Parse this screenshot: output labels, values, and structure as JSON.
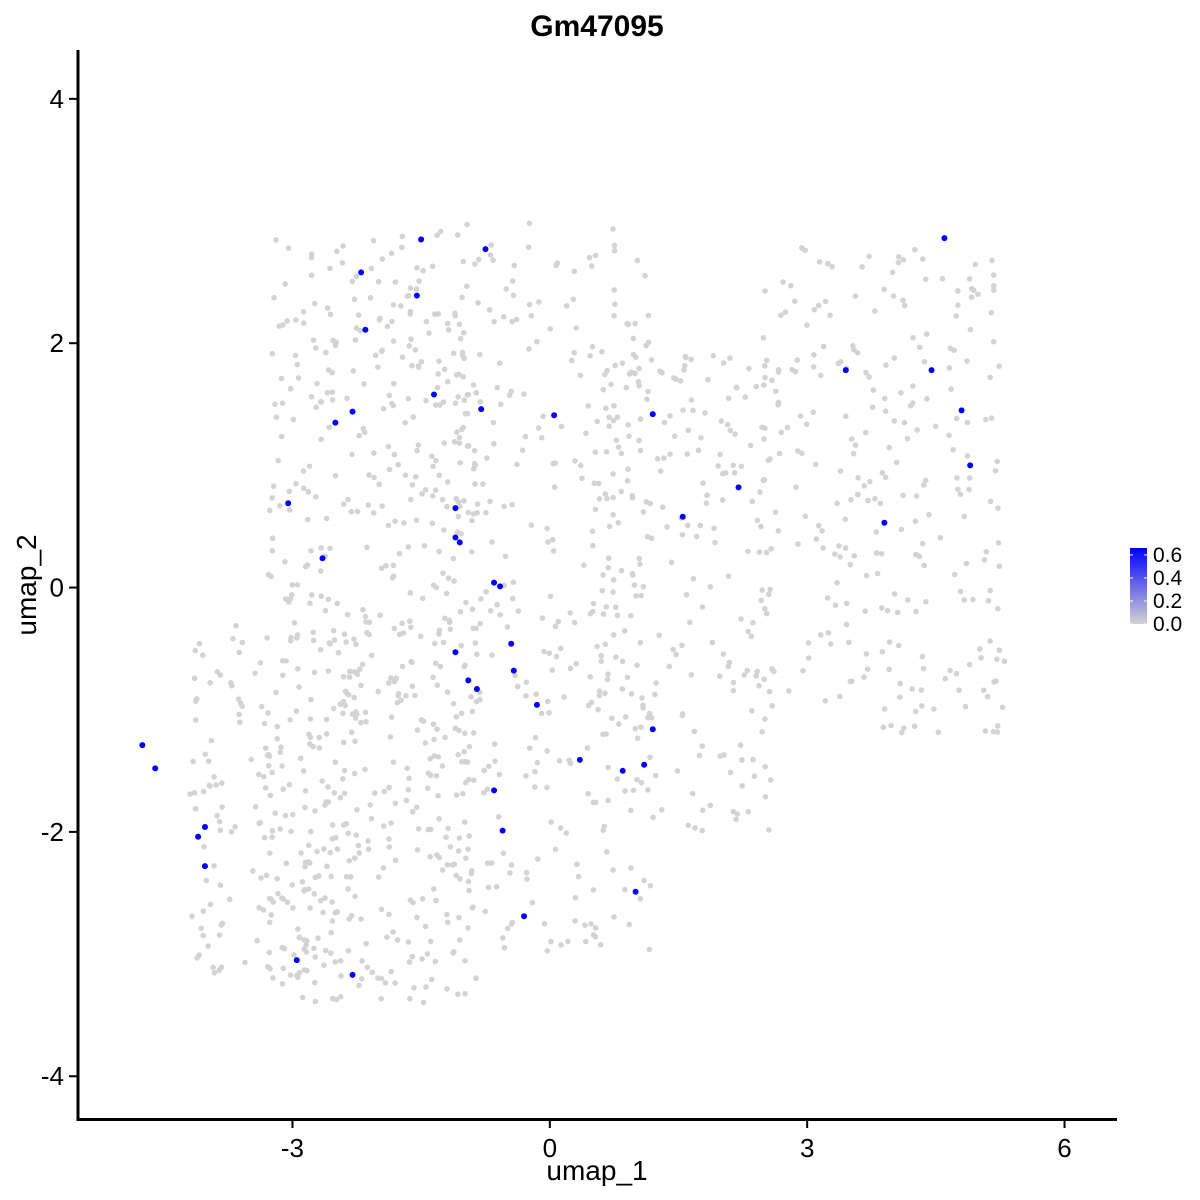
{
  "chart_data": {
    "type": "scatter",
    "title": "Gm47095",
    "xlabel": "umap_1",
    "ylabel": "umap_2",
    "xlim": [
      -5.5,
      6.6
    ],
    "ylim": [
      -4.35,
      4.4
    ],
    "x_ticks": [
      -3,
      0,
      3,
      6
    ],
    "x_tick_labels": [
      "-3",
      "0",
      "3",
      "6"
    ],
    "y_ticks": [
      -4,
      -2,
      0,
      2,
      4
    ],
    "y_tick_labels": [
      "-4",
      "-2",
      "0",
      "2",
      "4"
    ],
    "grid": false,
    "colors": {
      "low": "#d3d3d3",
      "high": "#0000ff"
    },
    "legend": {
      "position": "right",
      "ticks": [
        0.0,
        0.2,
        0.4,
        0.6
      ],
      "tick_labels": [
        "0.0",
        "0.2",
        "0.4",
        "0.6"
      ],
      "range": [
        0,
        0.66
      ]
    },
    "background_cells": {
      "expression": 0,
      "count": 1500,
      "regions": [
        {
          "x": [
            -3.3,
            -0.8
          ],
          "y": [
            -3.4,
            2.9
          ],
          "weight": 0.34
        },
        {
          "x": [
            -4.2,
            -2.2
          ],
          "y": [
            -3.2,
            -0.3
          ],
          "weight": 0.12
        },
        {
          "x": [
            -1.4,
            1.2
          ],
          "y": [
            -3.0,
            3.0
          ],
          "weight": 0.22
        },
        {
          "x": [
            0.5,
            2.6
          ],
          "y": [
            -2.0,
            1.9
          ],
          "weight": 0.14
        },
        {
          "x": [
            2.4,
            5.3
          ],
          "y": [
            -1.2,
            2.8
          ],
          "weight": 0.18
        }
      ]
    },
    "points": [
      {
        "x": -2.2,
        "y": 2.58,
        "value": 0.66
      },
      {
        "x": -1.5,
        "y": 2.85,
        "value": 0.66
      },
      {
        "x": -0.75,
        "y": 2.77,
        "value": 0.66
      },
      {
        "x": -1.55,
        "y": 2.39,
        "value": 0.66
      },
      {
        "x": -2.15,
        "y": 2.11,
        "value": 0.66
      },
      {
        "x": -1.35,
        "y": 1.58,
        "value": 0.66
      },
      {
        "x": -2.3,
        "y": 1.44,
        "value": 0.66
      },
      {
        "x": -2.5,
        "y": 1.35,
        "value": 0.66
      },
      {
        "x": -0.8,
        "y": 1.46,
        "value": 0.66
      },
      {
        "x": 0.05,
        "y": 1.41,
        "value": 0.66
      },
      {
        "x": 1.2,
        "y": 1.42,
        "value": 0.66
      },
      {
        "x": -3.05,
        "y": 0.69,
        "value": 0.66
      },
      {
        "x": -1.1,
        "y": 0.65,
        "value": 0.66
      },
      {
        "x": -1.1,
        "y": 0.41,
        "value": 0.66
      },
      {
        "x": -1.05,
        "y": 0.37,
        "value": 0.66
      },
      {
        "x": -2.65,
        "y": 0.24,
        "value": 0.66
      },
      {
        "x": -0.65,
        "y": 0.04,
        "value": 0.66
      },
      {
        "x": -0.58,
        "y": 0.01,
        "value": 0.66
      },
      {
        "x": -0.45,
        "y": -0.46,
        "value": 0.66
      },
      {
        "x": -1.1,
        "y": -0.53,
        "value": 0.66
      },
      {
        "x": -0.42,
        "y": -0.68,
        "value": 0.66
      },
      {
        "x": -0.95,
        "y": -0.76,
        "value": 0.66
      },
      {
        "x": -0.85,
        "y": -0.83,
        "value": 0.66
      },
      {
        "x": -0.15,
        "y": -0.96,
        "value": 0.66
      },
      {
        "x": 1.2,
        "y": -1.16,
        "value": 0.66
      },
      {
        "x": 0.35,
        "y": -1.41,
        "value": 0.66
      },
      {
        "x": 1.1,
        "y": -1.45,
        "value": 0.66
      },
      {
        "x": 0.85,
        "y": -1.5,
        "value": 0.66
      },
      {
        "x": -0.65,
        "y": -1.66,
        "value": 0.66
      },
      {
        "x": -0.55,
        "y": -1.99,
        "value": 0.66
      },
      {
        "x": -4.75,
        "y": -1.29,
        "value": 0.66
      },
      {
        "x": -4.6,
        "y": -1.48,
        "value": 0.66
      },
      {
        "x": -4.02,
        "y": -1.96,
        "value": 0.66
      },
      {
        "x": -4.1,
        "y": -2.04,
        "value": 0.66
      },
      {
        "x": -4.02,
        "y": -2.28,
        "value": 0.66
      },
      {
        "x": 1.0,
        "y": -2.49,
        "value": 0.66
      },
      {
        "x": -0.3,
        "y": -2.69,
        "value": 0.66
      },
      {
        "x": -2.95,
        "y": -3.05,
        "value": 0.66
      },
      {
        "x": -2.3,
        "y": -3.17,
        "value": 0.66
      },
      {
        "x": 2.2,
        "y": 0.82,
        "value": 0.66
      },
      {
        "x": 1.55,
        "y": 0.58,
        "value": 0.66
      },
      {
        "x": 3.45,
        "y": 1.78,
        "value": 0.66
      },
      {
        "x": 4.45,
        "y": 1.78,
        "value": 0.66
      },
      {
        "x": 4.8,
        "y": 1.45,
        "value": 0.66
      },
      {
        "x": 4.9,
        "y": 1.0,
        "value": 0.66
      },
      {
        "x": 3.9,
        "y": 0.53,
        "value": 0.66
      },
      {
        "x": 4.6,
        "y": 2.86,
        "value": 0.66
      }
    ]
  }
}
